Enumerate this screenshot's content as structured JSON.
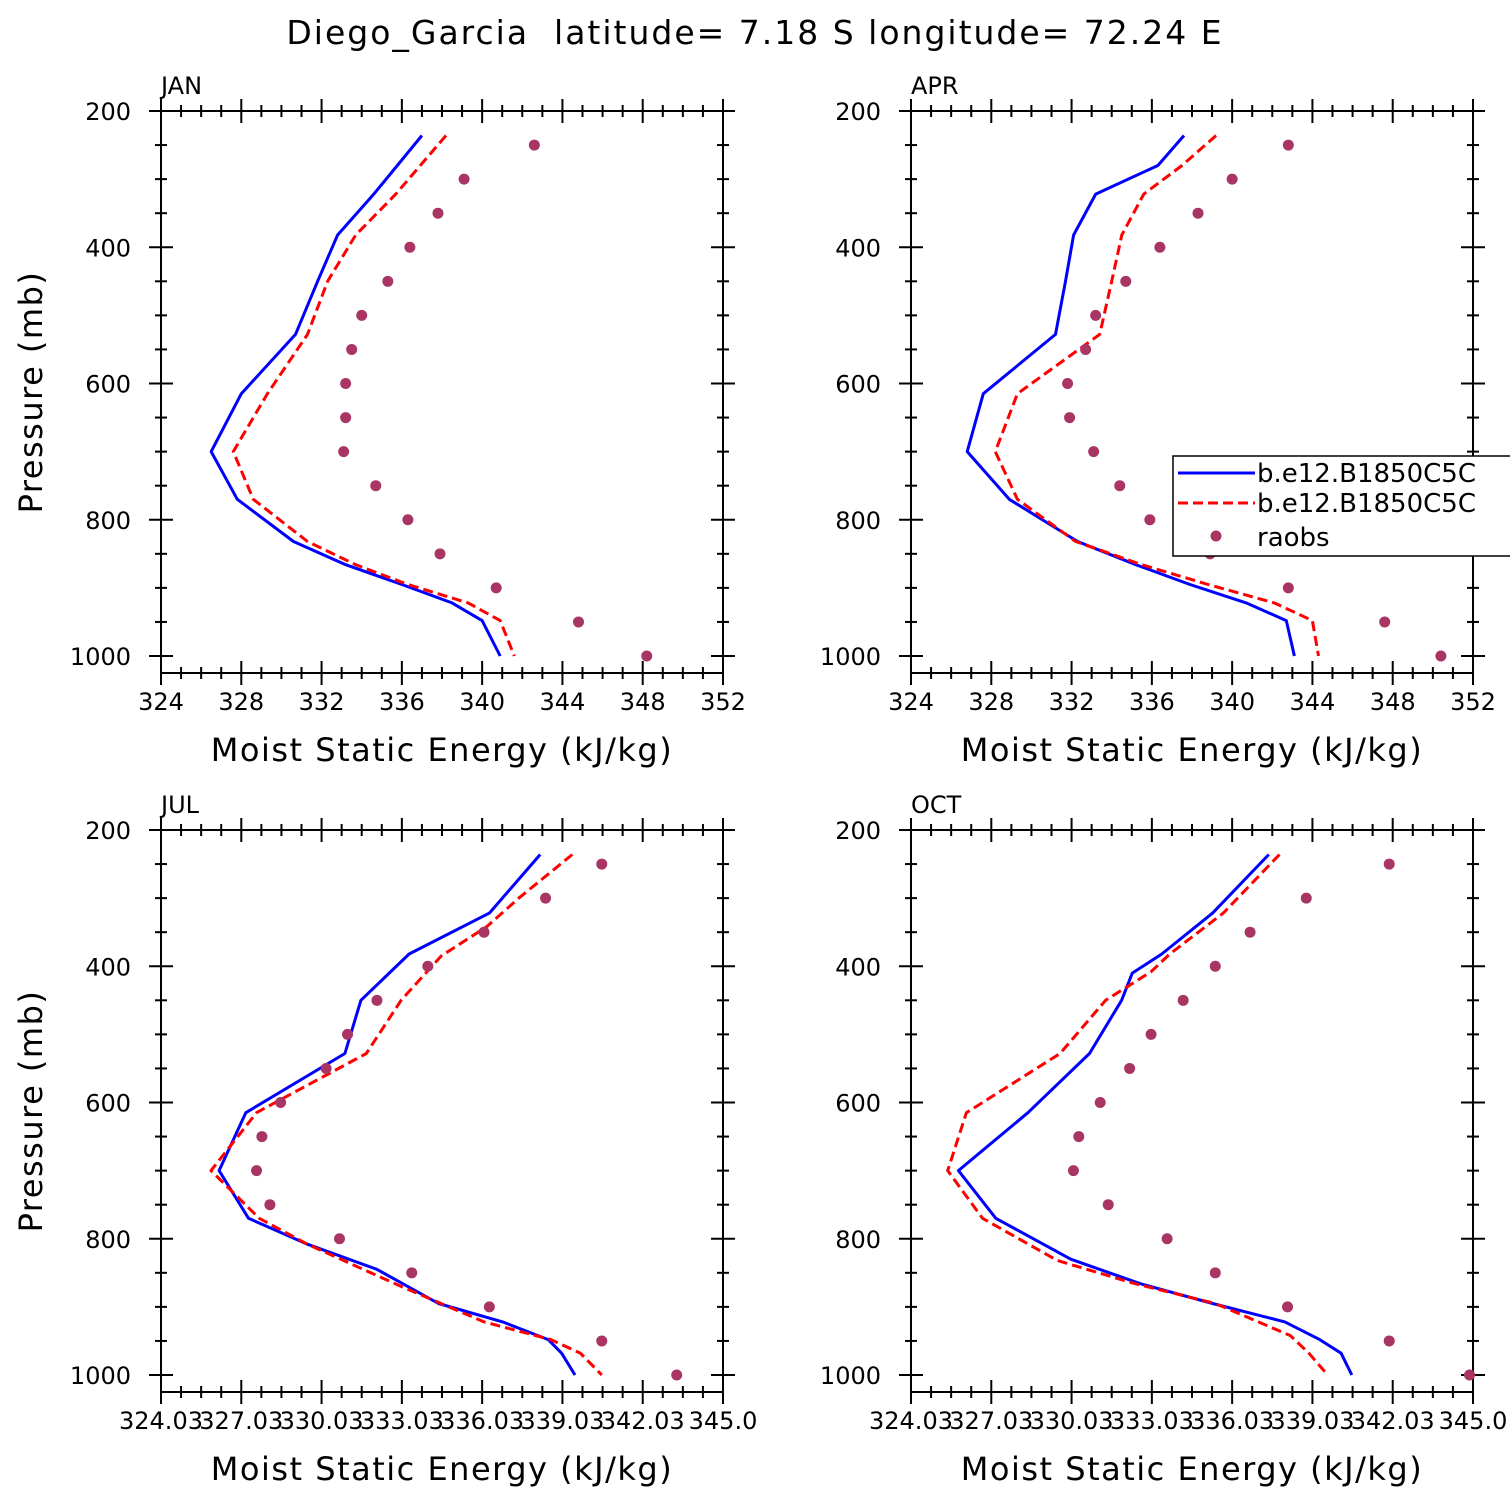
{
  "figure": {
    "title": "Diego_Garcia  latitude= 7.18 S longitude= 72.24 E"
  },
  "legend": {
    "entries": [
      {
        "label": "b.e12.B1850C5C",
        "style": "solid",
        "color": "#0000ff"
      },
      {
        "label": "b.e12.B1850C5C",
        "style": "dashed",
        "color": "#ff0000"
      },
      {
        "label": "raobs",
        "style": "dots",
        "color": "#a93565"
      }
    ]
  },
  "colors": {
    "model_solid": "#0000ff",
    "model_dashed": "#ff0000",
    "obs": "#a93565"
  },
  "chart_data": [
    {
      "type": "line",
      "panel_label": "JAN",
      "title": "",
      "xlabel": "Moist Static Energy (kJ/kg)",
      "ylabel": "Pressure (mb)",
      "xlim": [
        324,
        352
      ],
      "ylim": [
        1000,
        200
      ],
      "xticks": [
        324,
        328,
        332,
        336,
        340,
        344,
        348,
        352
      ],
      "xtick_labels": [
        "324",
        "328",
        "332",
        "336",
        "340",
        "344",
        "348",
        "352"
      ],
      "yticks": [
        200,
        400,
        600,
        800,
        1000
      ],
      "ytick_labels": [
        "200",
        "400",
        "600",
        "800",
        "1000"
      ],
      "series": [
        {
          "style": "solid",
          "x": [
            337.0,
            334.6,
            332.8,
            331.8,
            330.7,
            328.0,
            326.5,
            327.8,
            330.6,
            333.2,
            336.0,
            338.5,
            340.0,
            340.9
          ],
          "y": [
            236,
            322,
            382,
            450,
            528,
            615,
            700,
            770,
            832,
            866,
            895,
            922,
            948,
            1000
          ]
        },
        {
          "style": "dashed",
          "x": [
            338.2,
            335.7,
            333.7,
            332.3,
            331.3,
            329.3,
            327.6,
            328.6,
            331.3,
            333.7,
            336.3,
            339.3,
            340.9,
            341.6
          ],
          "y": [
            236,
            322,
            382,
            450,
            528,
            615,
            700,
            770,
            832,
            866,
            895,
            922,
            948,
            1000
          ]
        },
        {
          "style": "dots",
          "x": [
            342.6,
            339.1,
            337.8,
            336.4,
            335.3,
            334.0,
            333.5,
            333.2,
            333.2,
            333.1,
            334.7,
            336.3,
            337.9,
            340.7,
            344.8,
            348.2
          ],
          "y": [
            250,
            300,
            350,
            400,
            450,
            500,
            550,
            600,
            650,
            700,
            750,
            800,
            850,
            900,
            950,
            1000
          ]
        }
      ]
    },
    {
      "type": "line",
      "panel_label": "APR",
      "title": "",
      "xlabel": "Moist Static Energy (kJ/kg)",
      "ylabel": "",
      "xlim": [
        324,
        352
      ],
      "ylim": [
        1000,
        200
      ],
      "xticks": [
        324,
        328,
        332,
        336,
        340,
        344,
        348,
        352
      ],
      "xtick_labels": [
        "324",
        "328",
        "332",
        "336",
        "340",
        "344",
        "348",
        "352"
      ],
      "yticks": [
        200,
        400,
        600,
        800,
        1000
      ],
      "ytick_labels": [
        "200",
        "400",
        "600",
        "800",
        "1000"
      ],
      "series": [
        {
          "style": "solid",
          "x": [
            337.6,
            336.3,
            333.2,
            332.1,
            331.7,
            331.2,
            327.6,
            326.8,
            328.9,
            332.3,
            335.2,
            337.9,
            340.7,
            342.7,
            343.1
          ],
          "y": [
            236,
            280,
            322,
            382,
            450,
            528,
            615,
            700,
            770,
            832,
            866,
            895,
            922,
            948,
            1000
          ]
        },
        {
          "style": "dashed",
          "x": [
            339.2,
            337.5,
            335.6,
            334.5,
            334.0,
            333.4,
            329.3,
            328.2,
            329.3,
            332.2,
            335.5,
            338.8,
            342.1,
            344.0,
            344.3
          ],
          "y": [
            236,
            280,
            322,
            382,
            450,
            528,
            615,
            700,
            770,
            832,
            866,
            895,
            922,
            948,
            1000
          ]
        },
        {
          "style": "dots",
          "x": [
            342.8,
            340.0,
            338.3,
            336.4,
            334.7,
            333.2,
            332.7,
            331.8,
            331.9,
            333.1,
            334.4,
            335.9,
            338.9,
            342.8,
            347.6,
            350.4
          ],
          "y": [
            250,
            300,
            350,
            400,
            450,
            500,
            550,
            600,
            650,
            700,
            750,
            800,
            850,
            900,
            950,
            1000
          ]
        }
      ]
    },
    {
      "type": "line",
      "panel_label": "JUL",
      "title": "",
      "xlabel": "Moist Static Energy (kJ/kg)",
      "ylabel": "Pressure (mb)",
      "xlim": [
        324.03,
        345.03
      ],
      "ylim": [
        1000,
        200
      ],
      "xticks": [
        324.03,
        327.03,
        330.03,
        333.03,
        336.03,
        339.03,
        342.03,
        345.03
      ],
      "xtick_labels": [
        "324.03",
        "327.03",
        "330.03",
        "333.03",
        "336.03",
        "339.03",
        "342.03",
        "345.0"
      ],
      "yticks": [
        200,
        400,
        600,
        800,
        1000
      ],
      "ytick_labels": [
        "200",
        "400",
        "600",
        "800",
        "1000"
      ],
      "series": [
        {
          "style": "solid",
          "x": [
            338.2,
            336.3,
            333.3,
            331.5,
            330.9,
            327.2,
            326.2,
            327.3,
            329.5,
            332.1,
            334.4,
            336.8,
            338.5,
            339.0,
            339.5
          ],
          "y": [
            236,
            322,
            382,
            450,
            528,
            615,
            700,
            770,
            808,
            845,
            895,
            922,
            948,
            968,
            1000
          ]
        },
        {
          "style": "dashed",
          "x": [
            339.4,
            337.4,
            336.2,
            334.5,
            333.0,
            331.7,
            327.6,
            325.9,
            327.7,
            329.5,
            333.0,
            336.1,
            338.6,
            339.7,
            340.5
          ],
          "y": [
            236,
            300,
            342,
            385,
            450,
            528,
            615,
            700,
            770,
            808,
            870,
            922,
            948,
            968,
            1000
          ]
        },
        {
          "style": "dots",
          "x": [
            340.5,
            338.4,
            336.1,
            334.0,
            332.1,
            331.0,
            330.2,
            328.5,
            327.8,
            327.6,
            328.1,
            330.7,
            333.4,
            336.3,
            340.5,
            343.3
          ],
          "y": [
            250,
            300,
            350,
            400,
            450,
            500,
            550,
            600,
            650,
            700,
            750,
            800,
            850,
            900,
            950,
            1000
          ]
        }
      ]
    },
    {
      "type": "line",
      "panel_label": "OCT",
      "title": "",
      "xlabel": "Moist Static Energy (kJ/kg)",
      "ylabel": "",
      "xlim": [
        324.03,
        345.03
      ],
      "ylim": [
        1000,
        200
      ],
      "xticks": [
        324.03,
        327.03,
        330.03,
        333.03,
        336.03,
        339.03,
        342.03,
        345.03
      ],
      "xtick_labels": [
        "324.03",
        "327.03",
        "330.03",
        "333.03",
        "336.03",
        "339.03",
        "342.03",
        "345.0"
      ],
      "yticks": [
        200,
        400,
        600,
        800,
        1000
      ],
      "ytick_labels": [
        "200",
        "400",
        "600",
        "800",
        "1000"
      ],
      "series": [
        {
          "style": "solid",
          "x": [
            337.4,
            335.3,
            333.4,
            332.3,
            331.9,
            330.7,
            328.4,
            325.8,
            327.2,
            330.0,
            332.6,
            335.3,
            338.0,
            339.3,
            340.1,
            340.5
          ],
          "y": [
            236,
            322,
            382,
            410,
            450,
            528,
            615,
            700,
            770,
            830,
            866,
            895,
            922,
            948,
            968,
            1000
          ]
        },
        {
          "style": "dashed",
          "x": [
            337.8,
            335.7,
            333.7,
            333.0,
            331.3,
            329.6,
            326.1,
            325.4,
            326.7,
            329.5,
            332.4,
            335.4,
            338.2,
            338.9,
            339.6
          ],
          "y": [
            236,
            322,
            382,
            408,
            450,
            528,
            615,
            700,
            770,
            832,
            866,
            895,
            942,
            968,
            1000
          ]
        },
        {
          "style": "dots",
          "x": [
            341.9,
            338.8,
            336.7,
            335.4,
            334.2,
            333.0,
            332.2,
            331.1,
            330.3,
            330.1,
            331.4,
            333.6,
            335.4,
            338.1,
            341.9,
            344.9
          ],
          "y": [
            250,
            300,
            350,
            400,
            450,
            500,
            550,
            600,
            650,
            700,
            750,
            800,
            850,
            900,
            950,
            1000
          ]
        }
      ]
    }
  ]
}
